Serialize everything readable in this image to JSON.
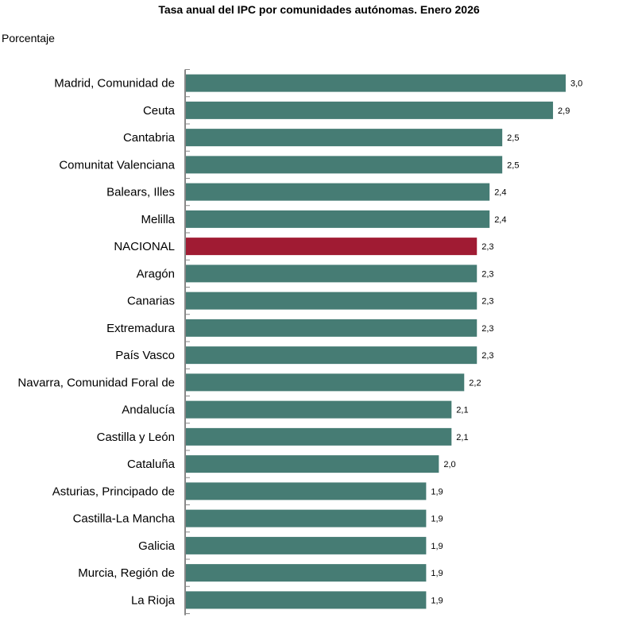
{
  "chart_data": {
    "type": "bar",
    "orientation": "horizontal",
    "title": "Tasa anual del IPC por comunidades autónomas. Enero 2026",
    "ylabel": "Porcentaje",
    "categories": [
      "Madrid, Comunidad de",
      "Ceuta",
      "Cantabria",
      "Comunitat Valenciana",
      "Balears, Illes",
      "Melilla",
      "NACIONAL",
      "Aragón",
      "Canarias",
      "Extremadura",
      "País Vasco",
      "Navarra, Comunidad Foral de",
      "Andalucía",
      "Castilla y León",
      "Cataluña",
      "Asturias, Principado de",
      "Castilla-La Mancha",
      "Galicia",
      "Murcia, Región de",
      "La Rioja"
    ],
    "values": [
      3.0,
      2.9,
      2.5,
      2.5,
      2.4,
      2.4,
      2.3,
      2.3,
      2.3,
      2.3,
      2.3,
      2.2,
      2.1,
      2.1,
      2.0,
      1.9,
      1.9,
      1.9,
      1.9,
      1.9
    ],
    "data_labels": [
      "3,0",
      "2,9",
      "2,5",
      "2,5",
      "2,4",
      "2,4",
      "2,3",
      "2,3",
      "2,3",
      "2,3",
      "2,3",
      "2,2",
      "2,1",
      "2,1",
      "2,0",
      "1,9",
      "1,9",
      "1,9",
      "1,9",
      "1,9"
    ],
    "xlim": [
      0,
      3.0
    ],
    "grid": false,
    "colors": {
      "default": "#467c74",
      "highlight": "#a01b33",
      "highlight_category": "NACIONAL",
      "axis": "#888888"
    }
  }
}
